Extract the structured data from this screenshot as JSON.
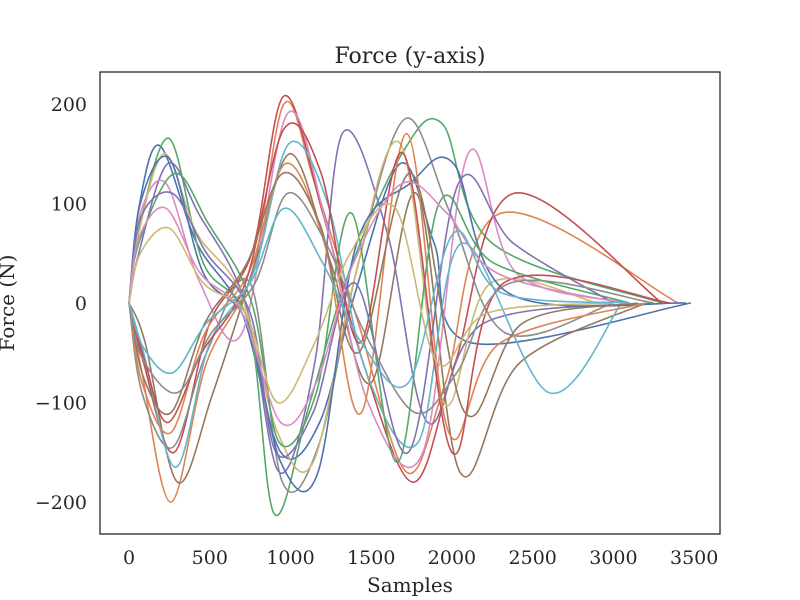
{
  "chart_data": {
    "type": "line",
    "title": "Force (y-axis)",
    "xlabel": "Samples",
    "ylabel": "Force (N)",
    "xlim": [
      -180,
      3660
    ],
    "ylim": [
      -232,
      232
    ],
    "xticks": [
      0,
      500,
      1000,
      1500,
      2000,
      2500,
      3000,
      3500
    ],
    "yticks": [
      -200,
      -100,
      0,
      100,
      200
    ],
    "xtick_labels": [
      "0",
      "500",
      "1000",
      "1500",
      "2000",
      "2500",
      "3000",
      "3500"
    ],
    "ytick_labels": [
      "−200",
      "−100",
      "0",
      "100",
      "200"
    ],
    "grid": false,
    "legend": "none",
    "palette": [
      "#4c72b0",
      "#dd8452",
      "#55a868",
      "#c44e52",
      "#8172b3",
      "#937860",
      "#da8bc3",
      "#8c8c8c",
      "#ccb974",
      "#64b5cd"
    ],
    "series": [
      {
        "x": [
          0,
          60,
          190,
          420,
          700,
          940,
          1180,
          1400,
          1680,
          1890,
          2120,
          3480
        ],
        "y": [
          0,
          95,
          158,
          60,
          -10,
          -150,
          -120,
          10,
          140,
          60,
          -40,
          0
        ]
      },
      {
        "x": [
          0,
          80,
          260,
          480,
          760,
          960,
          1150,
          1420,
          1720,
          1960,
          2300,
          3400
        ],
        "y": [
          0,
          -70,
          -200,
          -60,
          30,
          200,
          120,
          -20,
          -170,
          -80,
          90,
          0
        ]
      },
      {
        "x": [
          0,
          70,
          250,
          460,
          740,
          900,
          1120,
          1360,
          1690,
          1940,
          2250,
          3300
        ],
        "y": [
          0,
          80,
          165,
          40,
          -20,
          -212,
          -100,
          30,
          150,
          180,
          60,
          0
        ]
      },
      {
        "x": [
          0,
          90,
          280,
          500,
          760,
          960,
          1200,
          1450,
          1760,
          2020,
          2380,
          3300
        ],
        "y": [
          0,
          -60,
          -150,
          -20,
          50,
          208,
          90,
          -60,
          -180,
          -60,
          110,
          0
        ]
      },
      {
        "x": [
          0,
          60,
          240,
          430,
          720,
          930,
          1150,
          1320,
          1600,
          1850,
          2200,
          3250
        ],
        "y": [
          0,
          50,
          140,
          90,
          0,
          -170,
          -60,
          170,
          70,
          -120,
          -20,
          0
        ]
      },
      {
        "x": [
          0,
          100,
          300,
          520,
          780,
          1000,
          1250,
          1500,
          1780,
          2050,
          2420,
          3200
        ],
        "y": [
          0,
          -40,
          -180,
          -90,
          40,
          150,
          40,
          -80,
          110,
          -170,
          -60,
          0
        ]
      },
      {
        "x": [
          0,
          70,
          230,
          440,
          700,
          980,
          1220,
          1480,
          1820,
          2100,
          2400,
          3100
        ],
        "y": [
          0,
          90,
          120,
          20,
          -30,
          190,
          80,
          -100,
          -150,
          150,
          30,
          0
        ]
      },
      {
        "x": [
          0,
          80,
          270,
          480,
          750,
          950,
          1180,
          1420,
          1710,
          1990,
          2330,
          3000
        ],
        "y": [
          0,
          -90,
          -145,
          -50,
          20,
          -180,
          -140,
          40,
          185,
          90,
          -30,
          0
        ]
      },
      {
        "x": [
          0,
          60,
          220,
          420,
          690,
          920,
          1140,
          1390,
          1680,
          1950,
          2240,
          2900
        ],
        "y": [
          0,
          70,
          150,
          70,
          10,
          -130,
          -160,
          20,
          160,
          -100,
          20,
          0
        ]
      },
      {
        "x": [
          0,
          90,
          290,
          500,
          770,
          990,
          1230,
          1470,
          1790,
          2060,
          2600,
          3050
        ],
        "y": [
          0,
          -50,
          -165,
          -40,
          30,
          160,
          100,
          -70,
          -140,
          60,
          -90,
          0
        ]
      },
      {
        "x": [
          0,
          70,
          250,
          460,
          730,
          940,
          1170,
          1410,
          1740,
          2010,
          2350,
          3450
        ],
        "y": [
          0,
          100,
          145,
          30,
          -20,
          -160,
          -170,
          60,
          120,
          140,
          10,
          0
        ]
      },
      {
        "x": [
          0,
          80,
          260,
          470,
          740,
          970,
          1210,
          1440,
          1720,
          1980,
          2300,
          3200
        ],
        "y": [
          0,
          -80,
          -130,
          -30,
          30,
          140,
          60,
          -110,
          170,
          -130,
          -40,
          0
        ]
      },
      {
        "x": [
          0,
          60,
          280,
          490,
          760,
          930,
          1160,
          1380,
          1660,
          1920,
          2260,
          3100
        ],
        "y": [
          0,
          60,
          130,
          80,
          0,
          -140,
          -90,
          90,
          -160,
          100,
          40,
          0
        ]
      },
      {
        "x": [
          0,
          100,
          240,
          450,
          720,
          960,
          1190,
          1430,
          1700,
          2000,
          2320,
          3350
        ],
        "y": [
          0,
          -60,
          -120,
          -50,
          20,
          175,
          130,
          -40,
          150,
          -150,
          20,
          0
        ]
      },
      {
        "x": [
          0,
          70,
          270,
          480,
          750,
          910,
          1140,
          1400,
          1730,
          2040,
          2380,
          3000
        ],
        "y": [
          0,
          85,
          110,
          50,
          -10,
          -150,
          -110,
          20,
          -150,
          120,
          60,
          0
        ]
      },
      {
        "x": [
          0,
          90,
          260,
          470,
          730,
          950,
          1180,
          1420,
          1750,
          2080,
          2440,
          3150
        ],
        "y": [
          0,
          -75,
          -110,
          -20,
          40,
          130,
          80,
          -50,
          130,
          -110,
          -20,
          0
        ]
      },
      {
        "x": [
          0,
          60,
          230,
          440,
          700,
          940,
          1160,
          1390,
          1690,
          1970,
          2280,
          3050
        ],
        "y": [
          0,
          65,
          95,
          30,
          -10,
          -120,
          -80,
          40,
          120,
          90,
          30,
          0
        ]
      },
      {
        "x": [
          0,
          80,
          300,
          510,
          780,
          980,
          1220,
          1460,
          1770,
          2030,
          2360,
          3250
        ],
        "y": [
          0,
          -55,
          -90,
          -30,
          20,
          110,
          60,
          -30,
          -110,
          -70,
          20,
          0
        ]
      },
      {
        "x": [
          0,
          70,
          250,
          460,
          720,
          920,
          1150,
          1370,
          1650,
          1910,
          2220,
          3000
        ],
        "y": [
          0,
          50,
          75,
          20,
          -10,
          -100,
          -40,
          50,
          95,
          -60,
          -10,
          0
        ]
      },
      {
        "x": [
          0,
          90,
          270,
          480,
          750,
          960,
          1200,
          1440,
          1730,
          2010,
          2310,
          3100
        ],
        "y": [
          0,
          -45,
          -70,
          -20,
          20,
          95,
          40,
          -40,
          -80,
          70,
          10,
          0
        ]
      }
    ]
  }
}
